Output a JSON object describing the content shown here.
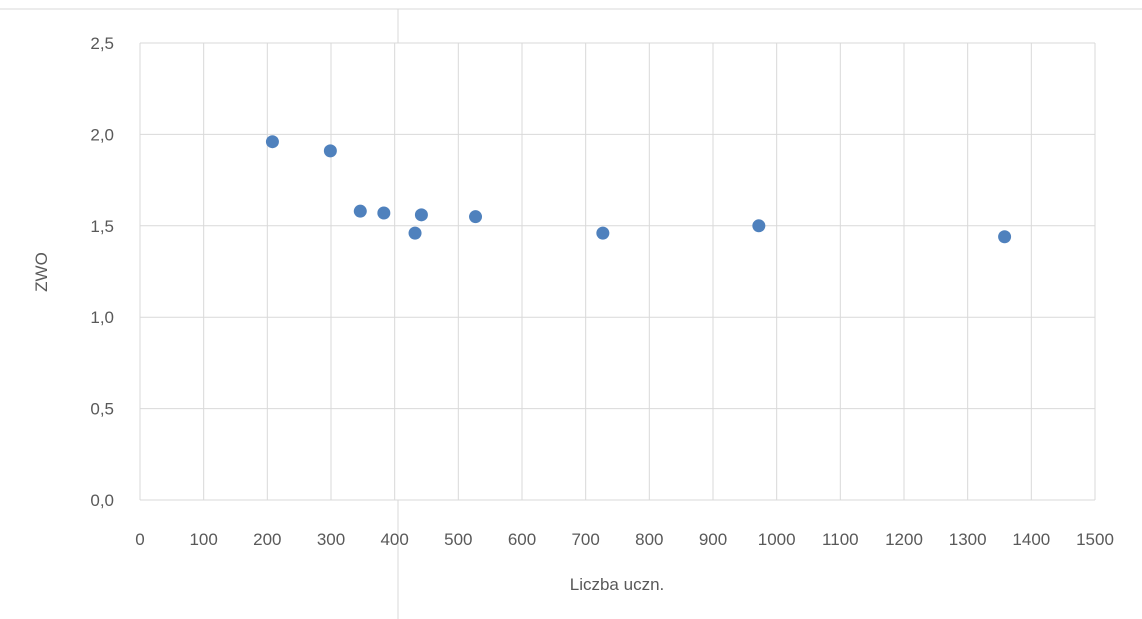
{
  "chart_data": {
    "type": "scatter",
    "xlabel": "Liczba uczn.",
    "ylabel": "ZWO",
    "xlim": [
      0,
      1500
    ],
    "ylim": [
      0,
      2.5
    ],
    "x_ticks": [
      "0",
      "100",
      "200",
      "300",
      "400",
      "500",
      "600",
      "700",
      "800",
      "900",
      "1000",
      "1100",
      "1200",
      "1300",
      "1400",
      "1500"
    ],
    "y_ticks": [
      "0,0",
      "0,5",
      "1,0",
      "1,5",
      "2,0",
      "2,5"
    ],
    "grid": true,
    "legend": "none",
    "marker_color": "#4f81bd",
    "series": [
      {
        "points": [
          {
            "x": 208,
            "y": 1.96
          },
          {
            "x": 299,
            "y": 1.91
          },
          {
            "x": 346,
            "y": 1.58
          },
          {
            "x": 383,
            "y": 1.57
          },
          {
            "x": 432,
            "y": 1.46
          },
          {
            "x": 442,
            "y": 1.56
          },
          {
            "x": 527,
            "y": 1.55
          },
          {
            "x": 727,
            "y": 1.46
          },
          {
            "x": 972,
            "y": 1.5
          },
          {
            "x": 1358,
            "y": 1.44
          }
        ]
      }
    ]
  }
}
